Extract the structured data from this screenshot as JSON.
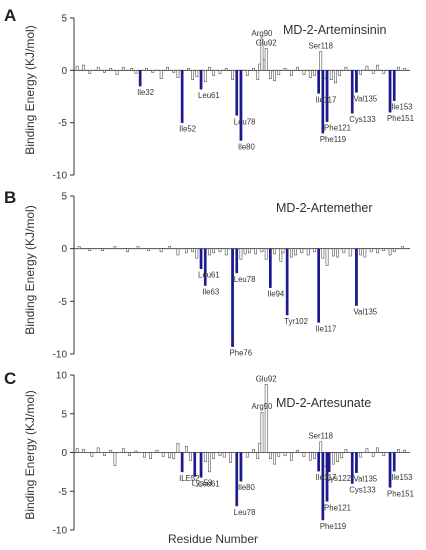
{
  "figure": {
    "ylabel": "Binding Energy (KJ/mol)",
    "xlabel": "Residue Number"
  },
  "chart_data": [
    {
      "type": "bar",
      "panel": "A",
      "title": "MD-2-Arteminsinin",
      "ylim": [
        -10,
        5
      ],
      "yticks": [
        -10,
        -5,
        0,
        5
      ],
      "highlight_color": "#1a1a8c",
      "base_color": "#ffffff",
      "n_residues": 160,
      "highlighted": [
        {
          "label": "Ile32",
          "residue": 32,
          "value": -1.5
        },
        {
          "label": "Ile52",
          "residue": 52,
          "value": -5.0
        },
        {
          "label": "Leu61",
          "residue": 61,
          "value": -1.8
        },
        {
          "label": "Leu78",
          "residue": 78,
          "value": -4.3
        },
        {
          "label": "Ile80",
          "residue": 80,
          "value": -6.7
        },
        {
          "label": "Ile117",
          "residue": 117,
          "value": -2.2
        },
        {
          "label": "Phe119",
          "residue": 119,
          "value": -6.0
        },
        {
          "label": "Phe121",
          "residue": 121,
          "value": -4.9
        },
        {
          "label": "Cys133",
          "residue": 133,
          "value": -4.1
        },
        {
          "label": "Val135",
          "residue": 135,
          "value": -2.1
        },
        {
          "label": "Phe151",
          "residue": 151,
          "value": -4.0
        },
        {
          "label": "Ile153",
          "residue": 153,
          "value": -2.9
        }
      ],
      "other_labeled": [
        {
          "label": "Arg90",
          "residue": 90,
          "value": 3.0
        },
        {
          "label": "Glu92",
          "residue": 92,
          "value": 2.1
        },
        {
          "label": "Ser118",
          "residue": 118,
          "value": 1.8
        }
      ],
      "minor": [
        [
          2,
          0.4
        ],
        [
          5,
          0.5
        ],
        [
          8,
          -0.3
        ],
        [
          12,
          0.3
        ],
        [
          15,
          -0.2
        ],
        [
          18,
          0.2
        ],
        [
          21,
          -0.4
        ],
        [
          24,
          0.3
        ],
        [
          28,
          0.2
        ],
        [
          30,
          -0.3
        ],
        [
          35,
          0.2
        ],
        [
          38,
          -0.2
        ],
        [
          42,
          -0.8
        ],
        [
          45,
          0.3
        ],
        [
          48,
          -0.2
        ],
        [
          50,
          -0.7
        ],
        [
          55,
          0.2
        ],
        [
          57,
          -0.9
        ],
        [
          59,
          -0.6
        ],
        [
          63,
          -1.1
        ],
        [
          65,
          0.3
        ],
        [
          67,
          -0.5
        ],
        [
          70,
          -0.3
        ],
        [
          73,
          0.2
        ],
        [
          76,
          -0.9
        ],
        [
          83,
          -0.5
        ],
        [
          86,
          0.2
        ],
        [
          88,
          -0.9
        ],
        [
          89,
          0.6
        ],
        [
          91,
          1.0
        ],
        [
          94,
          -0.8
        ],
        [
          96,
          -1.0
        ],
        [
          98,
          -0.4
        ],
        [
          101,
          0.2
        ],
        [
          104,
          -0.5
        ],
        [
          107,
          0.3
        ],
        [
          110,
          -0.4
        ],
        [
          113,
          -0.7
        ],
        [
          115,
          -0.5
        ],
        [
          120,
          -0.8
        ],
        [
          123,
          -0.9
        ],
        [
          125,
          -1.2
        ],
        [
          127,
          -0.5
        ],
        [
          130,
          0.3
        ],
        [
          137,
          -0.4
        ],
        [
          140,
          0.4
        ],
        [
          143,
          -0.3
        ],
        [
          145,
          0.5
        ],
        [
          148,
          -0.3
        ],
        [
          155,
          0.3
        ],
        [
          158,
          0.2
        ]
      ],
      "zero_line_extent": 1.0
    },
    {
      "type": "bar",
      "panel": "B",
      "title": "MD-2-Artemether",
      "ylim": [
        -10,
        5
      ],
      "yticks": [
        -10,
        -5,
        0,
        5
      ],
      "highlight_color": "#1a1a8c",
      "base_color": "#ffffff",
      "n_residues": 160,
      "highlighted": [
        {
          "label": "Leu61",
          "residue": 61,
          "value": -1.9
        },
        {
          "label": "Ile63",
          "residue": 63,
          "value": -3.5
        },
        {
          "label": "Phe76",
          "residue": 76,
          "value": -9.3
        },
        {
          "label": "Leu78",
          "residue": 78,
          "value": -2.3
        },
        {
          "label": "Ile94",
          "residue": 94,
          "value": -3.7
        },
        {
          "label": "Tyr102",
          "residue": 102,
          "value": -6.3
        },
        {
          "label": "Ile117",
          "residue": 117,
          "value": -7.0
        },
        {
          "label": "Val135",
          "residue": 135,
          "value": -5.4
        }
      ],
      "other_labeled": [],
      "minor": [
        [
          3,
          0.2
        ],
        [
          8,
          -0.2
        ],
        [
          14,
          -0.2
        ],
        [
          20,
          0.2
        ],
        [
          26,
          -0.3
        ],
        [
          31,
          0.2
        ],
        [
          36,
          -0.2
        ],
        [
          42,
          -0.3
        ],
        [
          46,
          0.2
        ],
        [
          50,
          -0.6
        ],
        [
          54,
          -0.4
        ],
        [
          57,
          -0.3
        ],
        [
          59,
          -0.9
        ],
        [
          65,
          -0.6
        ],
        [
          67,
          -0.4
        ],
        [
          70,
          -0.3
        ],
        [
          73,
          -0.6
        ],
        [
          80,
          -1.0
        ],
        [
          82,
          -0.5
        ],
        [
          84,
          -0.4
        ],
        [
          87,
          -0.5
        ],
        [
          90,
          -0.3
        ],
        [
          92,
          -1.0
        ],
        [
          96,
          -0.5
        ],
        [
          99,
          -1.2
        ],
        [
          100,
          -0.4
        ],
        [
          104,
          -0.8
        ],
        [
          106,
          -0.6
        ],
        [
          109,
          -0.4
        ],
        [
          112,
          -0.6
        ],
        [
          115,
          -0.3
        ],
        [
          119,
          -0.9
        ],
        [
          121,
          -1.6
        ],
        [
          124,
          -0.7
        ],
        [
          126,
          -0.8
        ],
        [
          129,
          -0.4
        ],
        [
          132,
          -0.7
        ],
        [
          137,
          -0.6
        ],
        [
          139,
          -0.8
        ],
        [
          142,
          -0.3
        ],
        [
          145,
          -0.4
        ],
        [
          148,
          -0.2
        ],
        [
          151,
          -0.6
        ],
        [
          153,
          -0.3
        ],
        [
          157,
          0.2
        ]
      ],
      "zero_line_extent": 1.0
    },
    {
      "type": "bar",
      "panel": "C",
      "title": "MD-2-Artesunate",
      "ylim": [
        -10,
        10
      ],
      "yticks": [
        -10,
        -5,
        0,
        5,
        10
      ],
      "highlight_color": "#1a1a8c",
      "base_color": "#ffffff",
      "n_residues": 160,
      "highlighted": [
        {
          "label": "ILE52",
          "residue": 52,
          "value": -2.5
        },
        {
          "label": "Lys58",
          "residue": 58,
          "value": -3.1
        },
        {
          "label": "Leu61",
          "residue": 61,
          "value": -3.2
        },
        {
          "label": "Leu78",
          "residue": 78,
          "value": -6.9
        },
        {
          "label": "Ile80",
          "residue": 80,
          "value": -3.7
        },
        {
          "label": "Ile117",
          "residue": 117,
          "value": -2.4
        },
        {
          "label": "Phe119",
          "residue": 119,
          "value": -8.7
        },
        {
          "label": "Phe121",
          "residue": 121,
          "value": -6.3
        },
        {
          "label": "Lys122",
          "residue": 122,
          "value": -2.5
        },
        {
          "label": "Cys133",
          "residue": 133,
          "value": -4.0
        },
        {
          "label": "Val135",
          "residue": 135,
          "value": -2.6
        },
        {
          "label": "Phe151",
          "residue": 151,
          "value": -4.5
        },
        {
          "label": "Ile153",
          "residue": 153,
          "value": -2.4
        }
      ],
      "other_labeled": [
        {
          "label": "Arg90",
          "residue": 90,
          "value": 5.2
        },
        {
          "label": "Glu92",
          "residue": 92,
          "value": 8.8
        },
        {
          "label": "Ser118",
          "residue": 118,
          "value": 1.4
        }
      ],
      "minor": [
        [
          2,
          0.5
        ],
        [
          5,
          0.4
        ],
        [
          9,
          -0.5
        ],
        [
          12,
          0.6
        ],
        [
          15,
          -0.4
        ],
        [
          18,
          0.3
        ],
        [
          20,
          -1.7
        ],
        [
          24,
          0.5
        ],
        [
          27,
          -0.4
        ],
        [
          30,
          0.2
        ],
        [
          34,
          -0.6
        ],
        [
          37,
          -0.8
        ],
        [
          40,
          0.3
        ],
        [
          43,
          -0.5
        ],
        [
          46,
          -0.7
        ],
        [
          48,
          -0.8
        ],
        [
          50,
          1.2
        ],
        [
          54,
          0.8
        ],
        [
          56,
          -1.0
        ],
        [
          63,
          -1.2
        ],
        [
          65,
          -2.5
        ],
        [
          67,
          -0.8
        ],
        [
          70,
          -0.4
        ],
        [
          72,
          -0.6
        ],
        [
          75,
          -1.3
        ],
        [
          83,
          -0.6
        ],
        [
          86,
          0.4
        ],
        [
          88,
          -0.8
        ],
        [
          89,
          1.2
        ],
        [
          94,
          -0.8
        ],
        [
          96,
          -1.5
        ],
        [
          98,
          -0.5
        ],
        [
          101,
          -0.4
        ],
        [
          104,
          -1.0
        ],
        [
          107,
          0.3
        ],
        [
          110,
          -0.5
        ],
        [
          113,
          -1.0
        ],
        [
          115,
          -0.8
        ],
        [
          120,
          -1.8
        ],
        [
          124,
          -1.5
        ],
        [
          126,
          -1.2
        ],
        [
          128,
          -0.7
        ],
        [
          130,
          0.4
        ],
        [
          137,
          -0.6
        ],
        [
          140,
          0.5
        ],
        [
          143,
          -0.5
        ],
        [
          145,
          0.6
        ],
        [
          148,
          -0.4
        ],
        [
          155,
          0.4
        ],
        [
          158,
          0.3
        ]
      ],
      "zero_line_extent": 1.0
    }
  ]
}
